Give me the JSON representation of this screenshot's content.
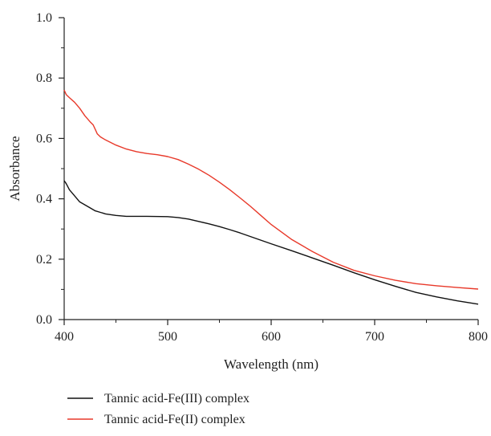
{
  "chart_data": {
    "type": "line",
    "xlabel": "Wavelength (nm)",
    "ylabel": "Absorbance",
    "xlim": [
      400,
      800
    ],
    "ylim": [
      0,
      1.0
    ],
    "xticks": [
      400,
      500,
      600,
      700,
      800
    ],
    "yticks": [
      0.0,
      0.2,
      0.4,
      0.6,
      0.8,
      1.0
    ],
    "ytick_labels": [
      "0.0",
      "0.2",
      "0.4",
      "0.6",
      "0.8",
      "1.0"
    ],
    "grid": false,
    "legend_position": "bottom",
    "series": [
      {
        "name": "Tannic acid-Fe(III) complex",
        "color": "#111111",
        "points": [
          [
            400,
            0.46
          ],
          [
            402,
            0.45
          ],
          [
            405,
            0.43
          ],
          [
            410,
            0.41
          ],
          [
            415,
            0.39
          ],
          [
            420,
            0.38
          ],
          [
            425,
            0.37
          ],
          [
            430,
            0.36
          ],
          [
            435,
            0.355
          ],
          [
            440,
            0.35
          ],
          [
            450,
            0.345
          ],
          [
            460,
            0.342
          ],
          [
            480,
            0.342
          ],
          [
            500,
            0.341
          ],
          [
            510,
            0.338
          ],
          [
            520,
            0.333
          ],
          [
            530,
            0.325
          ],
          [
            540,
            0.317
          ],
          [
            550,
            0.308
          ],
          [
            560,
            0.298
          ],
          [
            570,
            0.287
          ],
          [
            580,
            0.275
          ],
          [
            590,
            0.263
          ],
          [
            600,
            0.251
          ],
          [
            620,
            0.228
          ],
          [
            640,
            0.204
          ],
          [
            660,
            0.18
          ],
          [
            680,
            0.155
          ],
          [
            700,
            0.132
          ],
          [
            720,
            0.11
          ],
          [
            740,
            0.09
          ],
          [
            760,
            0.075
          ],
          [
            780,
            0.062
          ],
          [
            800,
            0.051
          ]
        ]
      },
      {
        "name": "Tannic acid-Fe(II) complex",
        "color": "#e8392a",
        "points": [
          [
            400,
            0.76
          ],
          [
            402,
            0.745
          ],
          [
            405,
            0.735
          ],
          [
            410,
            0.72
          ],
          [
            415,
            0.7
          ],
          [
            420,
            0.675
          ],
          [
            425,
            0.655
          ],
          [
            428,
            0.645
          ],
          [
            430,
            0.63
          ],
          [
            432,
            0.615
          ],
          [
            435,
            0.605
          ],
          [
            440,
            0.595
          ],
          [
            450,
            0.578
          ],
          [
            460,
            0.565
          ],
          [
            470,
            0.556
          ],
          [
            480,
            0.55
          ],
          [
            490,
            0.546
          ],
          [
            500,
            0.54
          ],
          [
            510,
            0.53
          ],
          [
            520,
            0.515
          ],
          [
            530,
            0.498
          ],
          [
            540,
            0.478
          ],
          [
            550,
            0.455
          ],
          [
            560,
            0.43
          ],
          [
            570,
            0.403
          ],
          [
            580,
            0.375
          ],
          [
            590,
            0.345
          ],
          [
            600,
            0.315
          ],
          [
            620,
            0.265
          ],
          [
            640,
            0.225
          ],
          [
            660,
            0.19
          ],
          [
            680,
            0.163
          ],
          [
            700,
            0.145
          ],
          [
            720,
            0.13
          ],
          [
            740,
            0.119
          ],
          [
            760,
            0.112
          ],
          [
            780,
            0.106
          ],
          [
            800,
            0.101
          ]
        ]
      }
    ]
  }
}
